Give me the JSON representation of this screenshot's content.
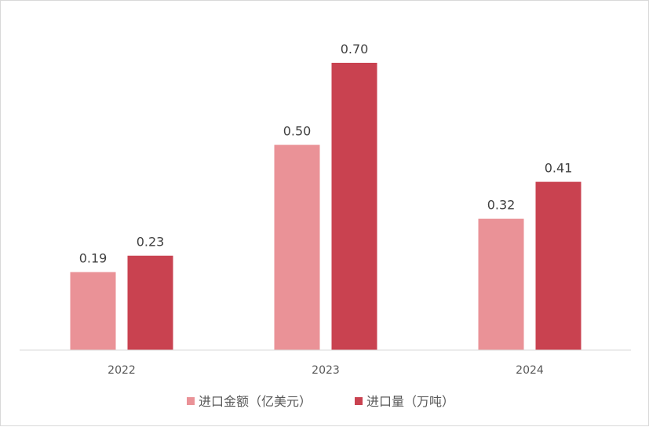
{
  "chart_data": {
    "type": "bar",
    "categories": [
      "2022",
      "2023",
      "2024"
    ],
    "series": [
      {
        "name": "进口金额（亿美元）",
        "values": [
          0.19,
          0.5,
          0.32
        ],
        "data_labels": [
          "0.19",
          "0.50",
          "0.32"
        ],
        "color": "#ea9297"
      },
      {
        "name": "进口量（万吨）",
        "values": [
          0.23,
          0.7,
          0.41
        ],
        "data_labels": [
          "0.23",
          "0.70",
          "0.41"
        ],
        "color": "#c94250"
      }
    ],
    "ylim": [
      0,
      0.7
    ],
    "grid": false,
    "legend": "bottom-center",
    "axis_color": "#d9d9d9"
  }
}
